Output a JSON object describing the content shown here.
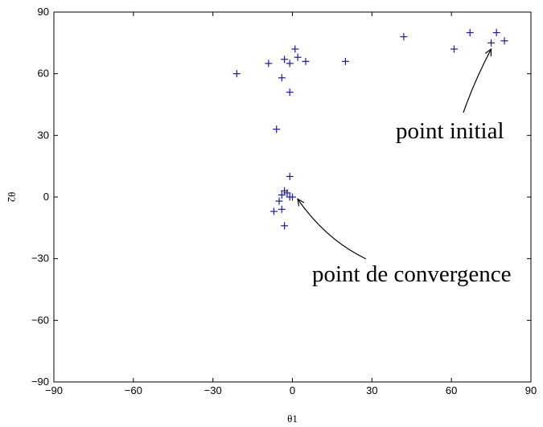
{
  "chart_data": {
    "type": "scatter",
    "title": "",
    "xlabel": "θ1",
    "ylabel": "θ2",
    "xlim": [
      -90,
      90
    ],
    "ylim": [
      -90,
      90
    ],
    "xticks": [
      -90,
      -60,
      -30,
      0,
      30,
      60,
      90
    ],
    "yticks": [
      -90,
      -60,
      -30,
      0,
      30,
      60,
      90
    ],
    "grid": false,
    "marker": "+",
    "color": "#1a1aa8",
    "series": [
      {
        "x": [
          -21,
          -9,
          -3,
          1,
          -1,
          2,
          5,
          20,
          -4,
          -1,
          -6,
          42,
          61,
          67,
          75,
          77,
          80,
          -1,
          -3,
          -4,
          -2,
          -1,
          -5,
          -4,
          -7,
          -3,
          0
        ],
        "y": [
          60,
          65,
          67,
          72,
          65,
          68,
          66,
          66,
          58,
          51,
          33,
          78,
          72,
          80,
          75,
          80,
          76,
          10,
          3,
          1,
          2,
          0,
          -2,
          -6,
          -7,
          -14,
          0
        ]
      }
    ],
    "annotations": [
      {
        "text": "point initial",
        "point": [
          75,
          72
        ]
      },
      {
        "text": "point de convergence",
        "point": [
          2,
          -1
        ]
      }
    ]
  }
}
